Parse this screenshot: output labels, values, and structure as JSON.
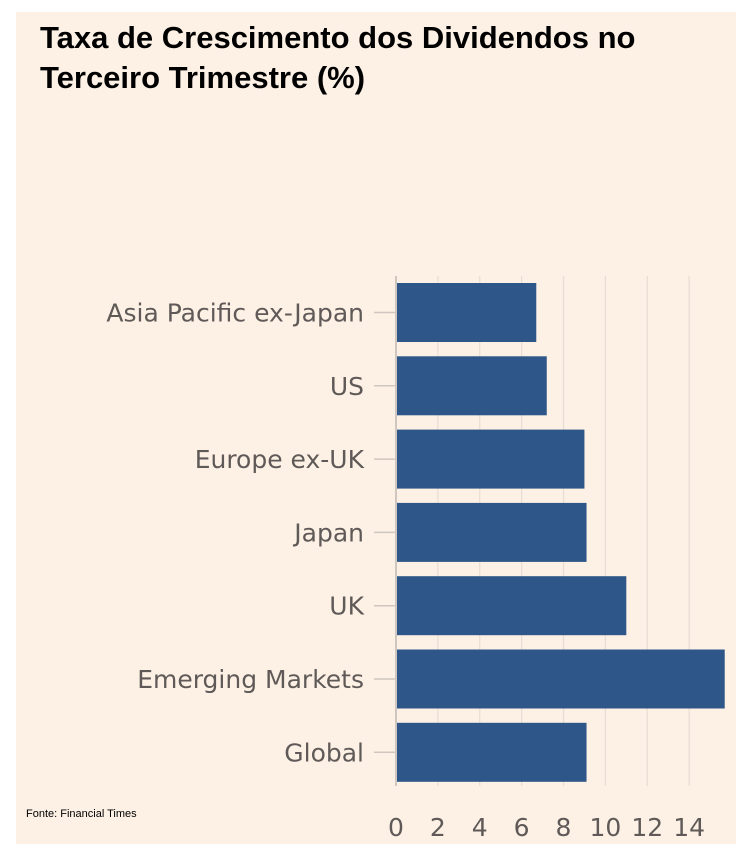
{
  "title": "Taxa de Crescimento dos Dividendos no Terceiro Trimestre (%)",
  "source": "Fonte: Financial Times",
  "colors": {
    "bar": "#2e5688",
    "background": "#fdf1e6",
    "grid": "#e6ddd3",
    "axis": "#cfc7bf"
  },
  "chart_data": {
    "type": "bar",
    "orientation": "horizontal",
    "title": "Taxa de Crescimento dos Dividendos no Terceiro Trimestre (%)",
    "categories": [
      "Asia Pacific ex-Japan",
      "US",
      "Europe ex-UK",
      "Japan",
      "UK",
      "Emerging Markets",
      "Global"
    ],
    "values": [
      6.7,
      7.2,
      9.0,
      9.1,
      11.0,
      15.7,
      9.1
    ],
    "xlim": [
      0,
      16
    ],
    "xticks": [
      0,
      2,
      4,
      6,
      8,
      10,
      12,
      14
    ],
    "xlabel": "",
    "ylabel": "",
    "grid": true,
    "legend": "none"
  }
}
